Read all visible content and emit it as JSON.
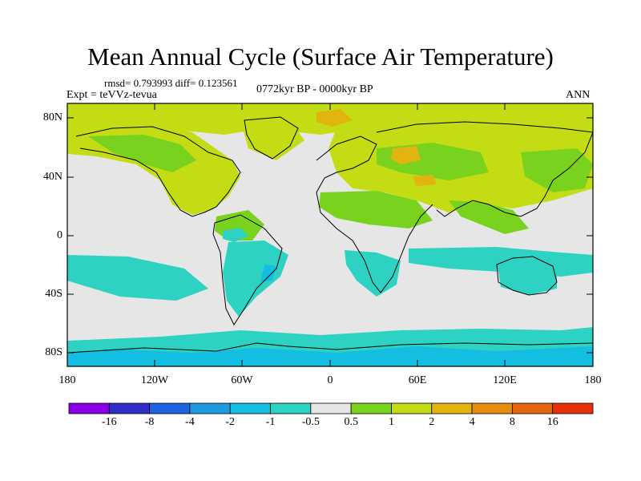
{
  "title": "Mean Annual Cycle (Surface Air Temperature)",
  "stats_line": "rmsd= 0.793993 diff= 0.123561",
  "experiment": "Expt = teVVz-tevua",
  "period": "0772kyr BP - 0000kyr BP",
  "season": "ANN",
  "lat_labels": [
    "80N",
    "40N",
    "0",
    "40S",
    "80S"
  ],
  "lon_labels": [
    "180",
    "120W",
    "60W",
    "0",
    "60E",
    "120E",
    "180"
  ],
  "colorbar": {
    "labels": [
      "-16",
      "-8",
      "-4",
      "-2",
      "-1",
      "-0.5",
      "0.5",
      "1",
      "2",
      "4",
      "8",
      "16"
    ],
    "colors": [
      "#8a00e6",
      "#2f2fc8",
      "#1e64e0",
      "#1e9be0",
      "#13bee0",
      "#2dd2c3",
      "#e6e6e6",
      "#78d21e",
      "#c3dc14",
      "#e1b40f",
      "#e68c0f",
      "#e6650f",
      "#e6320a"
    ]
  }
}
